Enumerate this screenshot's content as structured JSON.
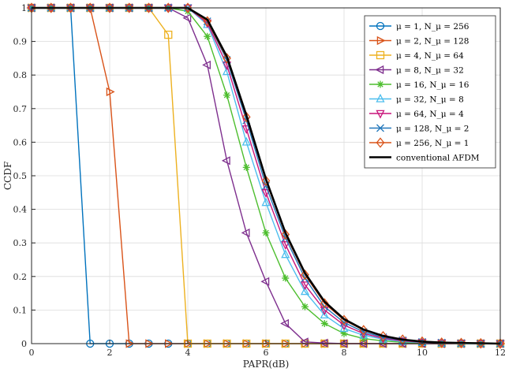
{
  "chart_data": {
    "type": "line",
    "title": "",
    "xlabel": "PAPR(dB)",
    "ylabel": "CCDF",
    "xlim": [
      0,
      12
    ],
    "ylim": [
      0,
      1
    ],
    "xticks": [
      "0",
      "2",
      "4",
      "6",
      "8",
      "10",
      "12"
    ],
    "yticks": [
      "0",
      "0.1",
      "0.2",
      "0.3",
      "0.4",
      "0.5",
      "0.6",
      "0.7",
      "0.8",
      "0.9",
      "1"
    ],
    "grid": true,
    "legend_position": "top-right",
    "x": [
      0,
      0.5,
      1,
      1.5,
      2,
      2.5,
      3,
      3.5,
      4,
      4.5,
      5,
      5.5,
      6,
      6.5,
      7,
      7.5,
      8,
      8.5,
      9,
      9.5,
      10,
      10.5,
      11,
      11.5,
      12
    ],
    "series": [
      {
        "name": "μ = 1, N_μ = 256",
        "color": "#0072BD",
        "marker": "circle",
        "points": [
          [
            0,
            1
          ],
          [
            0.5,
            1
          ],
          [
            1,
            1
          ],
          [
            1.5,
            0
          ],
          [
            2,
            0
          ],
          [
            2.5,
            0
          ],
          [
            3,
            0
          ],
          [
            3.5,
            0
          ],
          [
            4,
            0
          ],
          [
            4.5,
            0
          ],
          [
            5,
            0
          ],
          [
            5.5,
            0
          ],
          [
            6,
            0
          ],
          [
            6.5,
            0
          ],
          [
            7,
            0
          ],
          [
            7.5,
            0
          ],
          [
            8,
            0
          ],
          [
            8.5,
            0
          ],
          [
            9,
            0
          ],
          [
            9.5,
            0
          ],
          [
            10,
            0
          ],
          [
            10.5,
            0
          ],
          [
            11,
            0
          ],
          [
            11.5,
            0
          ],
          [
            12,
            0
          ]
        ]
      },
      {
        "name": "μ = 2, N_μ = 128",
        "color": "#D95319",
        "marker": "triangle-right",
        "points": [
          [
            0,
            1
          ],
          [
            0.5,
            1
          ],
          [
            1,
            1
          ],
          [
            1.5,
            1
          ],
          [
            2,
            0.75
          ],
          [
            2.5,
            0
          ],
          [
            3,
            0
          ],
          [
            3.5,
            0
          ],
          [
            4,
            0
          ],
          [
            4.5,
            0
          ],
          [
            5,
            0
          ],
          [
            5.5,
            0
          ],
          [
            6,
            0
          ],
          [
            6.5,
            0
          ],
          [
            7,
            0
          ],
          [
            7.5,
            0
          ],
          [
            8,
            0
          ],
          [
            8.5,
            0
          ],
          [
            9,
            0
          ],
          [
            9.5,
            0
          ],
          [
            10,
            0
          ],
          [
            10.5,
            0
          ],
          [
            11,
            0
          ],
          [
            11.5,
            0
          ],
          [
            12,
            0
          ]
        ]
      },
      {
        "name": "μ = 4, N_μ = 64",
        "color": "#EDB120",
        "marker": "square",
        "points": [
          [
            0,
            1
          ],
          [
            0.5,
            1
          ],
          [
            1,
            1
          ],
          [
            1.5,
            1
          ],
          [
            2,
            1
          ],
          [
            2.5,
            1
          ],
          [
            3,
            1
          ],
          [
            3.5,
            0.92
          ],
          [
            4,
            0
          ],
          [
            4.5,
            0
          ],
          [
            5,
            0
          ],
          [
            5.5,
            0
          ],
          [
            6,
            0
          ],
          [
            6.5,
            0
          ],
          [
            7,
            0
          ],
          [
            7.5,
            0
          ],
          [
            8,
            0
          ],
          [
            8.5,
            0
          ],
          [
            9,
            0
          ],
          [
            9.5,
            0
          ],
          [
            10,
            0
          ],
          [
            10.5,
            0
          ],
          [
            11,
            0
          ],
          [
            11.5,
            0
          ],
          [
            12,
            0
          ]
        ]
      },
      {
        "name": "μ = 8, N_μ = 32",
        "color": "#7E2F8E",
        "marker": "triangle-left",
        "points": [
          [
            0,
            1
          ],
          [
            0.5,
            1
          ],
          [
            1,
            1
          ],
          [
            1.5,
            1
          ],
          [
            2,
            1
          ],
          [
            2.5,
            1
          ],
          [
            3,
            1
          ],
          [
            3.5,
            1
          ],
          [
            4,
            0.97
          ],
          [
            4.5,
            0.83
          ],
          [
            5,
            0.545
          ],
          [
            5.5,
            0.33
          ],
          [
            6,
            0.185
          ],
          [
            6.5,
            0.06
          ],
          [
            7,
            0.005
          ],
          [
            7.5,
            0.002
          ],
          [
            8,
            0
          ],
          [
            8.5,
            0
          ],
          [
            9,
            0
          ],
          [
            9.5,
            0
          ],
          [
            10,
            0
          ],
          [
            10.5,
            0
          ],
          [
            11,
            0
          ],
          [
            11.5,
            0
          ],
          [
            12,
            0
          ]
        ]
      },
      {
        "name": "μ = 16, N_μ = 16",
        "color": "#4DBE2E",
        "marker": "asterisk",
        "points": [
          [
            0,
            1
          ],
          [
            0.5,
            1
          ],
          [
            1,
            1
          ],
          [
            1.5,
            1
          ],
          [
            2,
            1
          ],
          [
            2.5,
            1
          ],
          [
            3,
            1
          ],
          [
            3.5,
            1
          ],
          [
            4,
            0.99
          ],
          [
            4.5,
            0.915
          ],
          [
            5,
            0.74
          ],
          [
            5.5,
            0.525
          ],
          [
            6,
            0.33
          ],
          [
            6.5,
            0.195
          ],
          [
            7,
            0.11
          ],
          [
            7.5,
            0.06
          ],
          [
            8,
            0.03
          ],
          [
            8.5,
            0.015
          ],
          [
            9,
            0.008
          ],
          [
            9.5,
            0.004
          ],
          [
            10,
            0.002
          ],
          [
            10.5,
            0.001
          ],
          [
            11,
            0
          ],
          [
            11.5,
            0
          ],
          [
            12,
            0
          ]
        ]
      },
      {
        "name": "μ = 32, N_μ = 8",
        "color": "#4DBEEE",
        "marker": "triangle-up",
        "points": [
          [
            0,
            1
          ],
          [
            0.5,
            1
          ],
          [
            1,
            1
          ],
          [
            1.5,
            1
          ],
          [
            2,
            1
          ],
          [
            2.5,
            1
          ],
          [
            3,
            1
          ],
          [
            3.5,
            1
          ],
          [
            4,
            1
          ],
          [
            4.5,
            0.95
          ],
          [
            5,
            0.81
          ],
          [
            5.5,
            0.6
          ],
          [
            6,
            0.42
          ],
          [
            6.5,
            0.265
          ],
          [
            7,
            0.155
          ],
          [
            7.5,
            0.085
          ],
          [
            8,
            0.045
          ],
          [
            8.5,
            0.025
          ],
          [
            9,
            0.013
          ],
          [
            9.5,
            0.006
          ],
          [
            10,
            0.003
          ],
          [
            10.5,
            0.001
          ],
          [
            11,
            0
          ],
          [
            11.5,
            0
          ],
          [
            12,
            0
          ]
        ]
      },
      {
        "name": "μ = 64, N_μ = 4",
        "color": "#C8147A",
        "marker": "triangle-down",
        "points": [
          [
            0,
            1
          ],
          [
            0.5,
            1
          ],
          [
            1,
            1
          ],
          [
            1.5,
            1
          ],
          [
            2,
            1
          ],
          [
            2.5,
            1
          ],
          [
            3,
            1
          ],
          [
            3.5,
            1
          ],
          [
            4,
            1
          ],
          [
            4.5,
            0.955
          ],
          [
            5,
            0.83
          ],
          [
            5.5,
            0.64
          ],
          [
            6,
            0.45
          ],
          [
            6.5,
            0.295
          ],
          [
            7,
            0.175
          ],
          [
            7.5,
            0.1
          ],
          [
            8,
            0.055
          ],
          [
            8.5,
            0.03
          ],
          [
            9,
            0.016
          ],
          [
            9.5,
            0.008
          ],
          [
            10,
            0.004
          ],
          [
            10.5,
            0.002
          ],
          [
            11,
            0.001
          ],
          [
            11.5,
            0
          ],
          [
            12,
            0
          ]
        ]
      },
      {
        "name": "μ = 128, N_μ = 2",
        "color": "#2277BB",
        "marker": "cross",
        "points": [
          [
            0,
            1
          ],
          [
            0.5,
            1
          ],
          [
            1,
            1
          ],
          [
            1.5,
            1
          ],
          [
            2,
            1
          ],
          [
            2.5,
            1
          ],
          [
            3,
            1
          ],
          [
            3.5,
            1
          ],
          [
            4,
            1
          ],
          [
            4.5,
            0.96
          ],
          [
            5,
            0.845
          ],
          [
            5.5,
            0.665
          ],
          [
            6,
            0.47
          ],
          [
            6.5,
            0.315
          ],
          [
            7,
            0.195
          ],
          [
            7.5,
            0.11
          ],
          [
            8,
            0.063
          ],
          [
            8.5,
            0.035
          ],
          [
            9,
            0.019
          ],
          [
            9.5,
            0.01
          ],
          [
            10,
            0.005
          ],
          [
            10.5,
            0.003
          ],
          [
            11,
            0.001
          ],
          [
            11.5,
            0
          ],
          [
            12,
            0
          ]
        ]
      },
      {
        "name": "μ = 256, N_μ = 1",
        "color": "#D95319",
        "marker": "diamond",
        "points": [
          [
            0,
            1
          ],
          [
            0.5,
            1
          ],
          [
            1,
            1
          ],
          [
            1.5,
            1
          ],
          [
            2,
            1
          ],
          [
            2.5,
            1
          ],
          [
            3,
            1
          ],
          [
            3.5,
            1
          ],
          [
            4,
            1
          ],
          [
            4.5,
            0.96
          ],
          [
            5,
            0.85
          ],
          [
            5.5,
            0.675
          ],
          [
            6,
            0.485
          ],
          [
            6.5,
            0.325
          ],
          [
            7,
            0.205
          ],
          [
            7.5,
            0.12
          ],
          [
            8,
            0.07
          ],
          [
            8.5,
            0.04
          ],
          [
            9,
            0.022
          ],
          [
            9.5,
            0.012
          ],
          [
            10,
            0.006
          ],
          [
            10.5,
            0.003
          ],
          [
            11,
            0.002
          ],
          [
            11.5,
            0.001
          ],
          [
            12,
            0
          ]
        ]
      },
      {
        "name": "conventional AFDM",
        "color": "#000000",
        "marker": "none",
        "points": [
          [
            0,
            1
          ],
          [
            0.5,
            1
          ],
          [
            1,
            1
          ],
          [
            1.5,
            1
          ],
          [
            2,
            1
          ],
          [
            2.5,
            1
          ],
          [
            3,
            1
          ],
          [
            3.5,
            1
          ],
          [
            4,
            1
          ],
          [
            4.5,
            0.965
          ],
          [
            5,
            0.855
          ],
          [
            5.5,
            0.68
          ],
          [
            6,
            0.49
          ],
          [
            6.5,
            0.33
          ],
          [
            7,
            0.21
          ],
          [
            7.5,
            0.125
          ],
          [
            8,
            0.073
          ],
          [
            8.5,
            0.042
          ],
          [
            9,
            0.023
          ],
          [
            9.5,
            0.012
          ],
          [
            10,
            0.006
          ],
          [
            10.5,
            0.003
          ],
          [
            11,
            0.002
          ],
          [
            11.5,
            0.001
          ],
          [
            12,
            0
          ]
        ]
      }
    ]
  }
}
